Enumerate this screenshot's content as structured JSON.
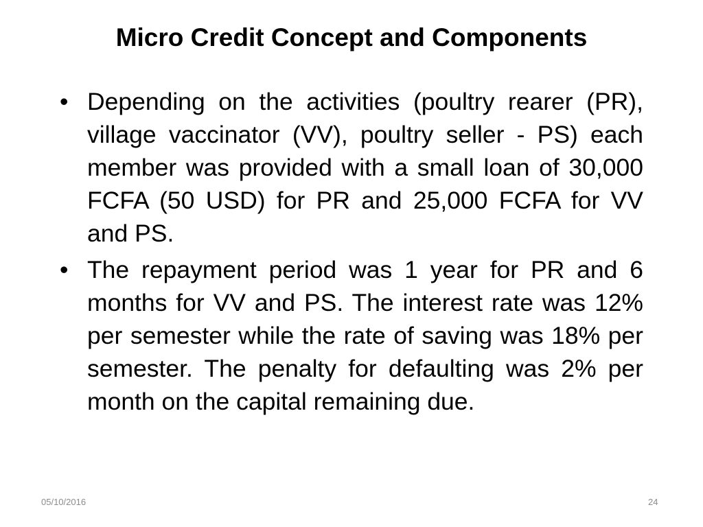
{
  "slide": {
    "title": "Micro Credit Concept and Components",
    "bullets": [
      "Depending on the activities (poultry rearer (PR), village vaccinator (VV), poultry seller - PS) each member was provided with a small loan of 30,000 FCFA (50 USD) for PR and 25,000 FCFA for VV and PS.",
      "The repayment period was 1 year for PR and 6 months for VV and PS. The interest rate was 12% per semester while the rate of saving was 18% per semester. The penalty for defaulting was 2% per month on the capital remaining due."
    ],
    "bullet_glyph": "•"
  },
  "footer": {
    "date": "05/10/2016",
    "page_number": "24"
  }
}
